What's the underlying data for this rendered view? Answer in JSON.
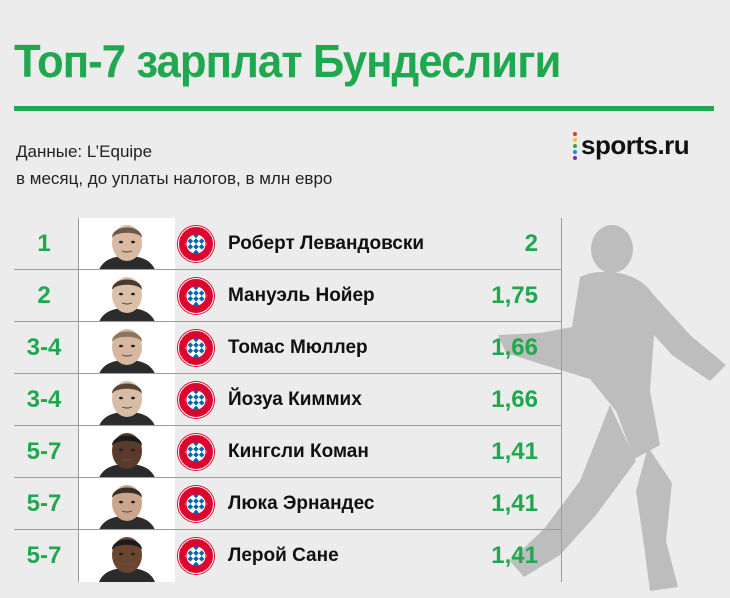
{
  "header": {
    "title": "Топ-7 зарплат Бундеслиги",
    "source": "Данные: L’Equipe",
    "note": "в месяц, до уплаты налогов, в млн евро",
    "logo_text": "sports.ru"
  },
  "colors": {
    "accent": "#1fa84f",
    "club": "#dc052d",
    "club_secondary": "#0066b2"
  },
  "rows": [
    {
      "rank": "1",
      "name": "Роберт Левандовски",
      "value": "2",
      "club_icon": "bayern-munich-crest"
    },
    {
      "rank": "2",
      "name": "Мануэль Нойер",
      "value": "1,75",
      "club_icon": "bayern-munich-crest"
    },
    {
      "rank": "3-4",
      "name": "Томас Мюллер",
      "value": "1,66",
      "club_icon": "bayern-munich-crest"
    },
    {
      "rank": "3-4",
      "name": "Йозуа Киммих",
      "value": "1,66",
      "club_icon": "bayern-munich-crest"
    },
    {
      "rank": "5-7",
      "name": "Кингсли Коман",
      "value": "1,41",
      "club_icon": "bayern-munich-crest"
    },
    {
      "rank": "5-7",
      "name": "Люка Эрнандес",
      "value": "1,41",
      "club_icon": "bayern-munich-crest"
    },
    {
      "rank": "5-7",
      "name": "Лерой Сане",
      "value": "1,41",
      "club_icon": "bayern-munich-crest"
    }
  ]
}
